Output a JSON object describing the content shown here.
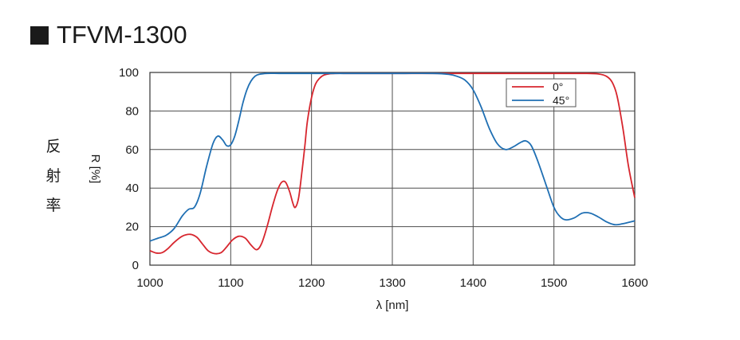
{
  "title": "TFVM-1300",
  "side_label": [
    "反",
    "射",
    "率"
  ],
  "chart_data": {
    "type": "line",
    "title": "TFVM-1300",
    "xlabel": "λ [nm]",
    "ylabel": "R [%]",
    "xlim": [
      1000,
      1600
    ],
    "ylim": [
      0,
      100
    ],
    "x_ticks": [
      1000,
      1100,
      1200,
      1300,
      1400,
      1500,
      1600
    ],
    "y_ticks": [
      0,
      20,
      40,
      60,
      80,
      100
    ],
    "grid": true,
    "legend_position": "top-right",
    "series": [
      {
        "name": "0°",
        "color": "#d7262e",
        "x": [
          1000,
          1008,
          1015,
          1022,
          1030,
          1040,
          1050,
          1058,
          1065,
          1072,
          1080,
          1088,
          1095,
          1102,
          1110,
          1118,
          1125,
          1132,
          1138,
          1145,
          1152,
          1158,
          1163,
          1168,
          1173,
          1177,
          1180,
          1184,
          1188,
          1192,
          1195,
          1200,
          1205,
          1210,
          1215,
          1222,
          1230,
          1250,
          1300,
          1400,
          1500,
          1540,
          1555,
          1565,
          1572,
          1578,
          1585,
          1592,
          1600
        ],
        "y": [
          7.5,
          6.3,
          6.5,
          8.5,
          11.8,
          15,
          16,
          14.5,
          11,
          7.5,
          6,
          6.5,
          9.5,
          13,
          15,
          14,
          10.5,
          8,
          11,
          20,
          31,
          39,
          43,
          43,
          38,
          32,
          30,
          35,
          48,
          63,
          75,
          87,
          94,
          97,
          98.6,
          99.3,
          99.5,
          99.5,
          99.5,
          99.5,
          99.5,
          99.5,
          99.2,
          98,
          95,
          88,
          72,
          52,
          35
        ]
      },
      {
        "name": "45°",
        "color": "#1f6fb3",
        "x": [
          1000,
          1010,
          1020,
          1030,
          1040,
          1048,
          1055,
          1062,
          1070,
          1078,
          1084,
          1090,
          1095,
          1100,
          1105,
          1110,
          1115,
          1120,
          1125,
          1130,
          1135,
          1145,
          1160,
          1180,
          1200,
          1300,
          1350,
          1370,
          1380,
          1390,
          1400,
          1410,
          1420,
          1430,
          1440,
          1450,
          1458,
          1465,
          1472,
          1480,
          1490,
          1500,
          1508,
          1515,
          1525,
          1535,
          1545,
          1555,
          1565,
          1575,
          1585,
          1595,
          1600
        ],
        "y": [
          12.5,
          14,
          15.5,
          19,
          25.5,
          29,
          30,
          37,
          51,
          63,
          67,
          65,
          62,
          62.5,
          67,
          75,
          84,
          91,
          95.5,
          98,
          99,
          99.5,
          99.5,
          99.5,
          99.5,
          99.5,
          99.5,
          99,
          98,
          96,
          91,
          82,
          71,
          63,
          60,
          61.5,
          63.5,
          64.5,
          62,
          54,
          42,
          30,
          25,
          23.5,
          24.5,
          27,
          27,
          25,
          22.5,
          21,
          21.5,
          22.5,
          23
        ]
      }
    ]
  }
}
